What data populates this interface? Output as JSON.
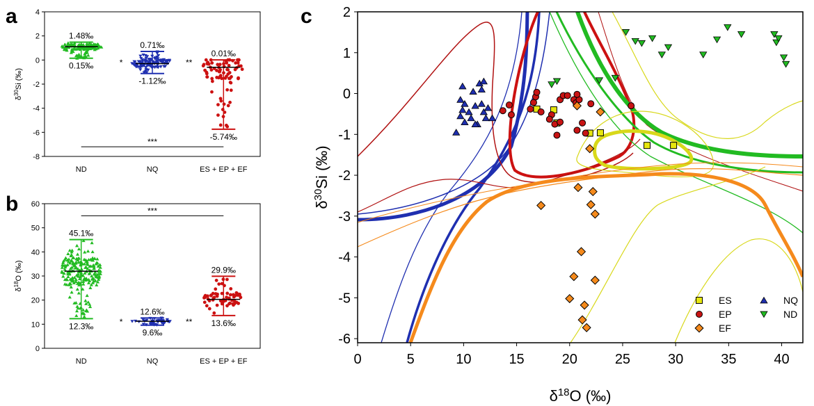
{
  "panel_labels": {
    "a": "a",
    "b": "b",
    "c": "c"
  },
  "colors": {
    "ND": "#22bb22",
    "NQ": "#1f2fb0",
    "EX": "#cc1111",
    "ES": "#e6e60f",
    "EP": "#c81414",
    "EF": "#f58a1c"
  },
  "chart_data": [
    {
      "type": "scatter",
      "panel": "a",
      "ylabel": "δ30Si (‰)",
      "ylabel_base": "δ",
      "ylabel_sup": "30",
      "ylabel_rest": "Si (‰)",
      "ylim": [
        -8,
        4
      ],
      "yticks": [
        "-8",
        "-6",
        "-4",
        "-2",
        "0",
        "2",
        "4"
      ],
      "categories": [
        "ND",
        "NQ",
        "ES + EP + EF"
      ],
      "groups": [
        {
          "category": "ND",
          "max": 1.48,
          "min": 0.15,
          "median": 1.1,
          "max_label": "1.48‰",
          "min_label": "0.15‰"
        },
        {
          "category": "NQ",
          "max": 0.71,
          "min": -1.12,
          "median": -0.3,
          "max_label": "0.71‰",
          "min_label": "-1.12‰"
        },
        {
          "category": "ES + EP + EF",
          "max": 0.01,
          "min": -5.74,
          "median": -0.6,
          "max_label": "0.01‰",
          "min_label": "-5.74‰"
        }
      ],
      "significance": [
        {
          "between": [
            "ND",
            "NQ"
          ],
          "label": "*"
        },
        {
          "between": [
            "NQ",
            "ES + EP + EF"
          ],
          "label": "**"
        },
        {
          "between": [
            "ND",
            "ES + EP + EF"
          ],
          "label": "***"
        }
      ]
    },
    {
      "type": "scatter",
      "panel": "b",
      "ylabel": "δ18O (‰)",
      "ylabel_base": "δ",
      "ylabel_sup": "18",
      "ylabel_rest": "O (‰)",
      "ylim": [
        0,
        60
      ],
      "yticks": [
        "0",
        "10",
        "20",
        "30",
        "40",
        "50",
        "60"
      ],
      "categories": [
        "ND",
        "NQ",
        "ES + EP + EF"
      ],
      "groups": [
        {
          "category": "ND",
          "max": 45.1,
          "min": 12.3,
          "median": 32.0,
          "max_label": "45.1‰",
          "min_label": "12.3‰"
        },
        {
          "category": "NQ",
          "max": 12.6,
          "min": 9.6,
          "median": 11.2,
          "max_label": "12.6‰",
          "min_label": "9.6‰"
        },
        {
          "category": "ES + EP + EF",
          "max": 29.9,
          "min": 13.6,
          "median": 20.3,
          "max_label": "29.9‰",
          "min_label": "13.6‰"
        }
      ],
      "significance": [
        {
          "between": [
            "ND",
            "NQ"
          ],
          "label": "*"
        },
        {
          "between": [
            "NQ",
            "ES + EP + EF"
          ],
          "label": "**"
        },
        {
          "between": [
            "ND",
            "ES + EP + EF"
          ],
          "label": "***"
        }
      ]
    },
    {
      "type": "scatter",
      "panel": "c",
      "xlabel": "δ18O (‰)",
      "xlabel_base": "δ",
      "xlabel_sup": "18",
      "xlabel_rest": "O (‰)",
      "ylabel": "δ30Si (‰)",
      "ylabel_base": "δ",
      "ylabel_sup": "30",
      "ylabel_rest": "Si (‰)",
      "xlim": [
        0,
        42
      ],
      "ylim": [
        -6.1,
        2
      ],
      "xticks": [
        "0",
        "5",
        "10",
        "15",
        "20",
        "25",
        "30",
        "35",
        "40"
      ],
      "yticks": [
        "-6",
        "-5",
        "-4",
        "-3",
        "-2",
        "-1",
        "0",
        "1",
        "2"
      ],
      "legend_position": "bottom-right",
      "series": [
        {
          "name": "ES",
          "marker": "square",
          "points": [
            [
              16.9,
              -0.38
            ],
            [
              18.5,
              -0.4
            ],
            [
              18.8,
              -0.72
            ],
            [
              21.9,
              -0.97
            ],
            [
              22.9,
              -0.96
            ],
            [
              27.3,
              -1.27
            ],
            [
              29.8,
              -1.27
            ]
          ]
        },
        {
          "name": "EP",
          "marker": "circle",
          "points": [
            [
              13.7,
              -0.42
            ],
            [
              14.3,
              -0.28
            ],
            [
              14.5,
              -0.52
            ],
            [
              16.3,
              -0.38
            ],
            [
              16.6,
              -0.22
            ],
            [
              17.3,
              -0.45
            ],
            [
              16.8,
              -0.08
            ],
            [
              16.9,
              0.03
            ],
            [
              18.3,
              -0.52
            ],
            [
              18.1,
              -0.63
            ],
            [
              18.6,
              -0.75
            ],
            [
              19.1,
              -0.7
            ],
            [
              18.8,
              -1.02
            ],
            [
              19.1,
              -0.15
            ],
            [
              19.4,
              -0.05
            ],
            [
              19.8,
              -0.05
            ],
            [
              20.4,
              -0.15
            ],
            [
              20.6,
              -0.23
            ],
            [
              20.9,
              -0.15
            ],
            [
              20.7,
              -0.02
            ],
            [
              21.2,
              -0.72
            ],
            [
              20.7,
              -0.9
            ],
            [
              21.5,
              -0.97
            ],
            [
              22.0,
              -0.25
            ],
            [
              25.8,
              -0.3
            ]
          ]
        },
        {
          "name": "EF",
          "marker": "diamond",
          "points": [
            [
              17.3,
              -2.74
            ],
            [
              20.0,
              -5.02
            ],
            [
              20.4,
              -4.48
            ],
            [
              20.8,
              -2.3
            ],
            [
              21.1,
              -3.87
            ],
            [
              21.2,
              -5.54
            ],
            [
              21.4,
              -5.18
            ],
            [
              21.6,
              -5.73
            ],
            [
              22.0,
              -2.72
            ],
            [
              22.2,
              -2.4
            ],
            [
              22.4,
              -4.57
            ],
            [
              22.4,
              -2.95
            ],
            [
              22.9,
              -0.45
            ],
            [
              21.9,
              -1.35
            ],
            [
              20.7,
              -0.3
            ]
          ]
        },
        {
          "name": "NQ",
          "marker": "triangle-up",
          "points": [
            [
              9.3,
              -0.95
            ],
            [
              9.7,
              -0.55
            ],
            [
              9.7,
              -0.15
            ],
            [
              9.9,
              0.18
            ],
            [
              9.9,
              -0.4
            ],
            [
              10.1,
              -0.25
            ],
            [
              10.1,
              -0.7
            ],
            [
              10.5,
              -0.45
            ],
            [
              10.7,
              -0.6
            ],
            [
              10.9,
              0.05
            ],
            [
              11.1,
              -0.3
            ],
            [
              11.3,
              -0.75
            ],
            [
              11.5,
              0.25
            ],
            [
              11.7,
              0.1
            ],
            [
              11.7,
              -0.25
            ],
            [
              11.9,
              -0.45
            ],
            [
              12.1,
              -0.6
            ],
            [
              12.3,
              -0.35
            ],
            [
              12.7,
              -0.6
            ],
            [
              11.1,
              -0.75
            ],
            [
              11.9,
              0.3
            ]
          ]
        },
        {
          "name": "ND",
          "marker": "triangle-down",
          "points": [
            [
              18.3,
              0.22
            ],
            [
              18.8,
              0.3
            ],
            [
              22.8,
              0.32
            ],
            [
              24.3,
              0.38
            ],
            [
              25.3,
              1.5
            ],
            [
              26.2,
              1.28
            ],
            [
              26.8,
              1.23
            ],
            [
              27.8,
              1.35
            ],
            [
              28.7,
              0.95
            ],
            [
              29.3,
              1.13
            ],
            [
              32.6,
              0.95
            ],
            [
              33.9,
              1.32
            ],
            [
              34.9,
              1.62
            ],
            [
              36.2,
              1.45
            ],
            [
              39.3,
              1.45
            ],
            [
              39.5,
              1.25
            ],
            [
              39.7,
              1.35
            ],
            [
              40.2,
              0.88
            ],
            [
              40.4,
              0.72
            ]
          ]
        }
      ]
    }
  ]
}
